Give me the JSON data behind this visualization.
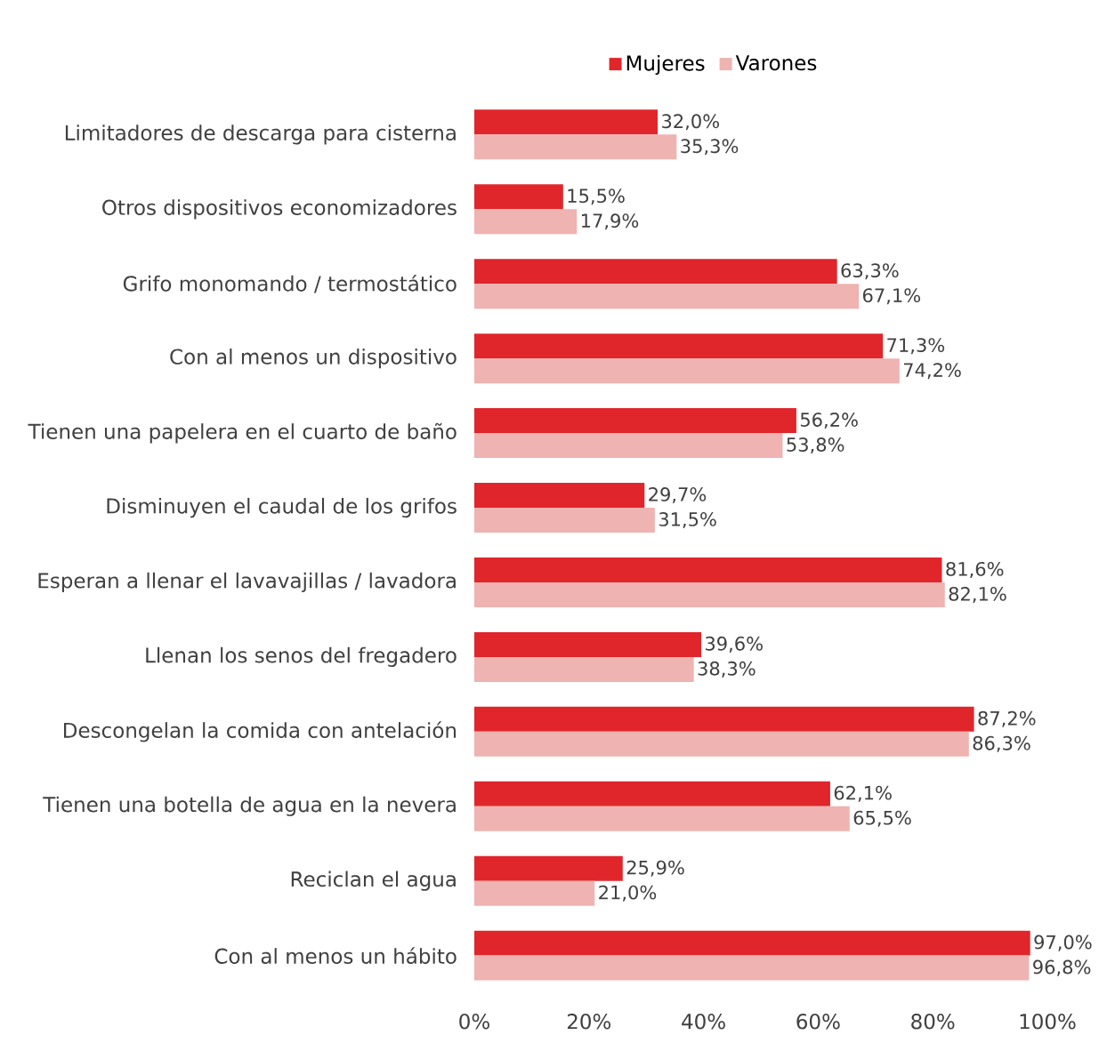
{
  "chart_data": {
    "type": "bar",
    "orientation": "horizontal",
    "categories": [
      "Limitadores de descarga para cisterna",
      "Otros dispositivos economizadores",
      "Grifo monomando / termostático",
      "Con al menos un dispositivo",
      "Tienen una papelera en el cuarto de baño",
      "Disminuyen el caudal de los grifos",
      "Esperan a llenar el lavavajillas / lavadora",
      "Llenan los senos del fregadero",
      "Descongelan la comida con antelación",
      "Tienen una botella de agua en la nevera",
      "Reciclan el agua",
      "Con al menos un hábito"
    ],
    "series": [
      {
        "name": "Mujeres",
        "color": "#e0262a",
        "values": [
          32.0,
          15.5,
          63.3,
          71.3,
          56.2,
          29.7,
          81.6,
          39.6,
          87.2,
          62.1,
          25.9,
          97.0
        ],
        "value_labels": [
          "32,0%",
          "15,5%",
          "63,3%",
          "71,3%",
          "56,2%",
          "29,7%",
          "81,6%",
          "39,6%",
          "87,2%",
          "62,1%",
          "25,9%",
          "97,0%"
        ]
      },
      {
        "name": "Varones",
        "color": "#efb3b1",
        "values": [
          35.3,
          17.9,
          67.1,
          74.2,
          53.8,
          31.5,
          82.1,
          38.3,
          86.3,
          65.5,
          21.0,
          96.8
        ],
        "value_labels": [
          "35,3%",
          "17,9%",
          "67,1%",
          "74,2%",
          "53,8%",
          "31,5%",
          "82,1%",
          "38,3%",
          "86,3%",
          "65,5%",
          "21,0%",
          "96,8%"
        ]
      }
    ],
    "xlim": [
      0,
      100
    ],
    "xticks": [
      {
        "value": 0,
        "label": "0%"
      },
      {
        "value": 20,
        "label": "20%"
      },
      {
        "value": 40,
        "label": "40%"
      },
      {
        "value": 60,
        "label": "60%"
      },
      {
        "value": 80,
        "label": "80%"
      },
      {
        "value": 100,
        "label": "100%"
      }
    ],
    "legend": "top"
  }
}
